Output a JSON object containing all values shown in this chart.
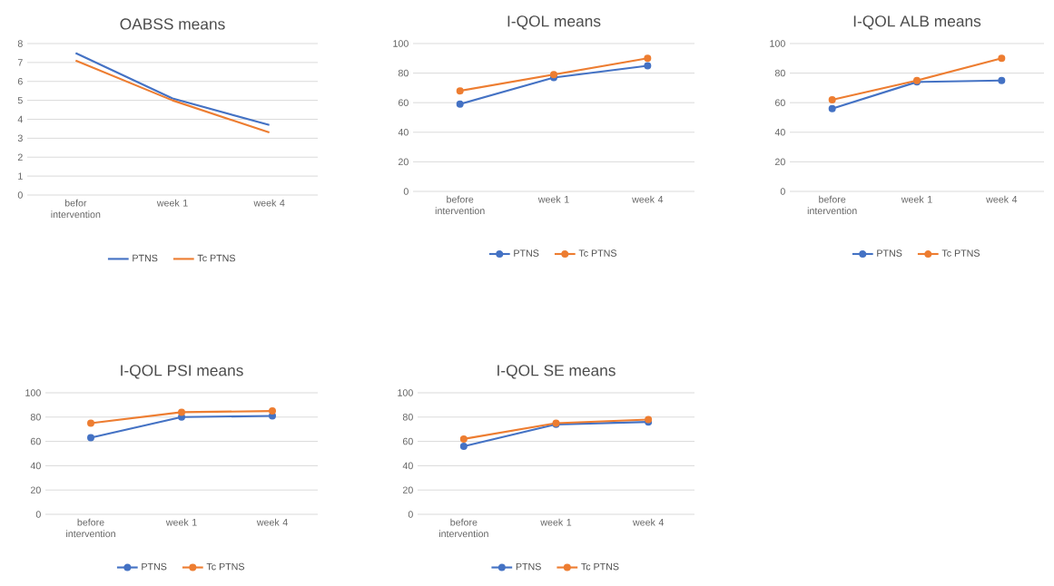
{
  "chart_data": [
    {
      "type": "line",
      "title": "OABSS means",
      "categories": [
        "befor intervention",
        "week 1",
        "week 4"
      ],
      "ylim": [
        0,
        8
      ],
      "yticks": [
        0,
        1,
        2,
        3,
        4,
        5,
        6,
        7,
        8
      ],
      "grid": "y",
      "legend": "bottom",
      "marker": "none",
      "series": [
        {
          "name": "PTNS",
          "color": "#4472c4",
          "values": [
            7.5,
            5.1,
            3.7
          ]
        },
        {
          "name": "Tc PTNS",
          "color": "#ed7d31",
          "values": [
            7.1,
            5.0,
            3.3
          ]
        }
      ]
    },
    {
      "type": "line",
      "title": "I-QOL means",
      "categories": [
        "before intervention",
        "week 1",
        "week 4"
      ],
      "ylim": [
        0,
        100
      ],
      "yticks": [
        0,
        20,
        40,
        60,
        80,
        100
      ],
      "grid": "y",
      "legend": "bottom",
      "marker": "circle",
      "series": [
        {
          "name": "PTNS",
          "color": "#4472c4",
          "values": [
            59,
            77,
            85
          ]
        },
        {
          "name": "Tc PTNS",
          "color": "#ed7d31",
          "values": [
            68,
            79,
            90
          ]
        }
      ]
    },
    {
      "type": "line",
      "title": "I-QOL ALB means",
      "categories": [
        "before intervention",
        "week 1",
        "week 4"
      ],
      "ylim": [
        0,
        100
      ],
      "yticks": [
        0,
        20,
        40,
        60,
        80,
        100
      ],
      "grid": "y",
      "legend": "bottom",
      "marker": "circle",
      "series": [
        {
          "name": "PTNS",
          "color": "#4472c4",
          "values": [
            56,
            74,
            75
          ]
        },
        {
          "name": "Tc PTNS",
          "color": "#ed7d31",
          "values": [
            62,
            75,
            90
          ]
        }
      ]
    },
    {
      "type": "line",
      "title": "I-QOL PSI means",
      "categories": [
        "before intervention",
        "week 1",
        "week 4"
      ],
      "ylim": [
        0,
        100
      ],
      "yticks": [
        0,
        20,
        40,
        60,
        80,
        100
      ],
      "grid": "y",
      "legend": "bottom",
      "marker": "circle",
      "series": [
        {
          "name": "PTNS",
          "color": "#4472c4",
          "values": [
            63,
            80,
            81
          ]
        },
        {
          "name": "Tc PTNS",
          "color": "#ed7d31",
          "values": [
            75,
            84,
            85
          ]
        }
      ]
    },
    {
      "type": "line",
      "title": "I-QOL SE means",
      "categories": [
        "before intervention",
        "week 1",
        "week 4"
      ],
      "ylim": [
        0,
        100
      ],
      "yticks": [
        0,
        20,
        40,
        60,
        80,
        100
      ],
      "grid": "y",
      "legend": "bottom",
      "marker": "circle",
      "series": [
        {
          "name": "PTNS",
          "color": "#4472c4",
          "values": [
            56,
            74,
            76
          ]
        },
        {
          "name": "Tc PTNS",
          "color": "#ed7d31",
          "values": [
            62,
            75,
            78
          ]
        }
      ]
    }
  ]
}
